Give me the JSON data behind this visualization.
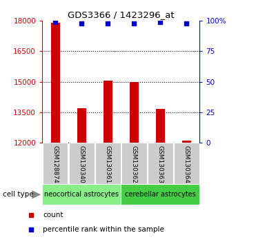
{
  "title": "GDS3366 / 1423296_at",
  "samples": [
    "GSM128874",
    "GSM130340",
    "GSM130361",
    "GSM130362",
    "GSM130363",
    "GSM130364"
  ],
  "counts": [
    17900,
    13700,
    15050,
    15000,
    13650,
    12100
  ],
  "percentile_ranks": [
    99,
    98,
    98,
    98,
    99,
    98
  ],
  "ylim_left": [
    12000,
    18000
  ],
  "ylim_right": [
    0,
    100
  ],
  "yticks_left": [
    12000,
    13500,
    15000,
    16500,
    18000
  ],
  "yticks_right": [
    0,
    25,
    50,
    75,
    100
  ],
  "ytick_labels_right": [
    "0",
    "25",
    "50",
    "75",
    "100%"
  ],
  "bar_color": "#cc0000",
  "dot_color": "#0000cc",
  "bar_bottom": 12000,
  "groups": [
    {
      "label": "neocortical astrocytes",
      "start": 0,
      "end": 3,
      "color": "#88ee88"
    },
    {
      "label": "cerebellar astrocytes",
      "start": 3,
      "end": 6,
      "color": "#44cc44"
    }
  ],
  "cell_type_label": "cell type",
  "legend_items": [
    {
      "color": "#cc0000",
      "label": "count"
    },
    {
      "color": "#0000cc",
      "label": "percentile rank within the sample"
    }
  ],
  "dotted_grid_values": [
    13500,
    15000,
    16500
  ],
  "left_tick_color": "#cc0000",
  "right_tick_color": "#0000cc",
  "bar_width": 0.35,
  "label_box_color": "#cccccc",
  "spine_color": "#000000"
}
